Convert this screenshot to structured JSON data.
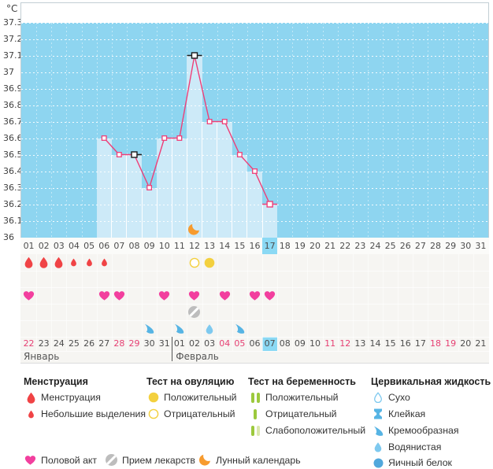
{
  "unit": "°C",
  "chart_data": {
    "type": "line",
    "ylabel": "°C",
    "ylim": [
      36,
      37.4
    ],
    "yticks": [
      "37.3",
      "37.2",
      "37.1",
      "37",
      "36.9",
      "36.8",
      "36.7",
      "36.6",
      "36.5",
      "36.4",
      "36.3",
      "36.2",
      "36.1",
      "36"
    ],
    "x_days": [
      "01",
      "02",
      "03",
      "04",
      "05",
      "06",
      "07",
      "08",
      "09",
      "10",
      "11",
      "12",
      "13",
      "14",
      "15",
      "16",
      "17",
      "18",
      "19",
      "20",
      "21",
      "22",
      "23",
      "24",
      "25",
      "26",
      "27",
      "28",
      "29",
      "30",
      "31"
    ],
    "series": [
      {
        "name": "temperature",
        "x": [
          6,
          7,
          8,
          9,
          10,
          11,
          12,
          13,
          14,
          15,
          16,
          17
        ],
        "values": [
          36.6,
          36.5,
          36.5,
          36.3,
          36.6,
          36.6,
          37.1,
          36.7,
          36.7,
          36.5,
          36.4,
          36.2
        ]
      }
    ],
    "highlighted_day": 17,
    "cycle_bar_days": [
      6,
      17
    ],
    "special_markers": [
      {
        "day": 8,
        "color": "black",
        "dash": "right"
      },
      {
        "day": 12,
        "color": "black",
        "dash": "both"
      },
      {
        "day": 17,
        "color": "pink",
        "dash": "both"
      }
    ],
    "moon_calendar_day": 12,
    "grid": "dotted-white"
  },
  "tracking_rows": {
    "menstruation": [
      {
        "day": 1,
        "size": "big"
      },
      {
        "day": 2,
        "size": "big"
      },
      {
        "day": 3,
        "size": "big"
      },
      {
        "day": 4,
        "size": "small"
      },
      {
        "day": 5,
        "size": "small"
      },
      {
        "day": 6,
        "size": "small"
      }
    ],
    "ovulation_test": [
      {
        "day": 12,
        "result": "negative"
      },
      {
        "day": 13,
        "result": "positive"
      }
    ],
    "pregnancy_test": [],
    "intercourse_days": [
      1,
      6,
      7,
      10,
      12,
      14,
      16,
      17
    ],
    "medication_days": [
      12
    ],
    "cervical_fluid": [
      {
        "day": 9,
        "type": "creamy"
      },
      {
        "day": 11,
        "type": "creamy"
      },
      {
        "day": 13,
        "type": "watery"
      },
      {
        "day": 15,
        "type": "creamy"
      }
    ]
  },
  "calendar": {
    "dates": [
      {
        "label": "22",
        "weekend": true
      },
      {
        "label": "23",
        "weekend": false
      },
      {
        "label": "24",
        "weekend": false
      },
      {
        "label": "25",
        "weekend": false
      },
      {
        "label": "26",
        "weekend": false
      },
      {
        "label": "27",
        "weekend": false
      },
      {
        "label": "28",
        "weekend": true
      },
      {
        "label": "29",
        "weekend": true
      },
      {
        "label": "30",
        "weekend": false
      },
      {
        "label": "31",
        "weekend": false
      },
      {
        "label": "01",
        "weekend": false
      },
      {
        "label": "02",
        "weekend": false
      },
      {
        "label": "03",
        "weekend": false
      },
      {
        "label": "04",
        "weekend": true
      },
      {
        "label": "05",
        "weekend": true
      },
      {
        "label": "06",
        "weekend": false
      },
      {
        "label": "07",
        "weekend": false
      },
      {
        "label": "08",
        "weekend": false
      },
      {
        "label": "09",
        "weekend": false
      },
      {
        "label": "10",
        "weekend": false
      },
      {
        "label": "11",
        "weekend": true
      },
      {
        "label": "12",
        "weekend": true
      },
      {
        "label": "13",
        "weekend": false
      },
      {
        "label": "14",
        "weekend": false
      },
      {
        "label": "15",
        "weekend": false
      },
      {
        "label": "16",
        "weekend": false
      },
      {
        "label": "17",
        "weekend": false
      },
      {
        "label": "18",
        "weekend": true
      },
      {
        "label": "19",
        "weekend": true
      },
      {
        "label": "20",
        "weekend": false
      },
      {
        "label": "21",
        "weekend": false
      }
    ],
    "current_index": 16,
    "month_divider_index": 10,
    "months": [
      {
        "label": "Январь"
      },
      {
        "label": "Февраль"
      }
    ]
  },
  "legend": {
    "columns": [
      {
        "title": "Менструация",
        "items": [
          {
            "icon": "drop-big",
            "label": "Менструация"
          },
          {
            "icon": "drop-small",
            "label": "Небольшие выделения"
          }
        ]
      },
      {
        "title": "Тест на овуляцию",
        "items": [
          {
            "icon": "circle-filled",
            "label": "Положительный"
          },
          {
            "icon": "circle-outline",
            "label": "Отрицательный"
          }
        ]
      },
      {
        "title": "Тест на беременность",
        "items": [
          {
            "icon": "bars-two",
            "label": "Положительный"
          },
          {
            "icon": "bar-one",
            "label": "Отрицательный"
          },
          {
            "icon": "bars-weak",
            "label": "Слабоположительный"
          }
        ]
      },
      {
        "title": "Цервикальная жидкость",
        "items": [
          {
            "icon": "drop-outline",
            "label": "Сухо"
          },
          {
            "icon": "sticky",
            "label": "Клейкая"
          },
          {
            "icon": "creamy",
            "label": "Кремообразная"
          },
          {
            "icon": "watery",
            "label": "Водянистая"
          },
          {
            "icon": "eggwhite",
            "label": "Яичный белок"
          }
        ]
      }
    ],
    "bottom_items": [
      {
        "icon": "heart",
        "label": "Половой акт"
      },
      {
        "icon": "pill",
        "label": "Прием лекарств"
      },
      {
        "icon": "moon",
        "label": "Лунный календарь"
      }
    ]
  },
  "colors": {
    "plot_bg": "#8ed5f0",
    "bar": "#cdeaf8",
    "line": "#ee3f78",
    "menses": "#f04345",
    "heart": "#f23f9e",
    "yellow": "#f3d03e",
    "green": "#9cc93d",
    "green_pale": "#dbe8ad",
    "cervical": "#56b4e4",
    "cervical_light": "#7ec9ef",
    "eggwhite": "#51a8dc",
    "moon": "#f79b2e",
    "pill": "#bdbdbd",
    "highlight": "#8bd9f4",
    "weekend_text": "#e64073",
    "grid_bg": "#f6f5f2",
    "daynum_bg": "#fbfbf9"
  }
}
